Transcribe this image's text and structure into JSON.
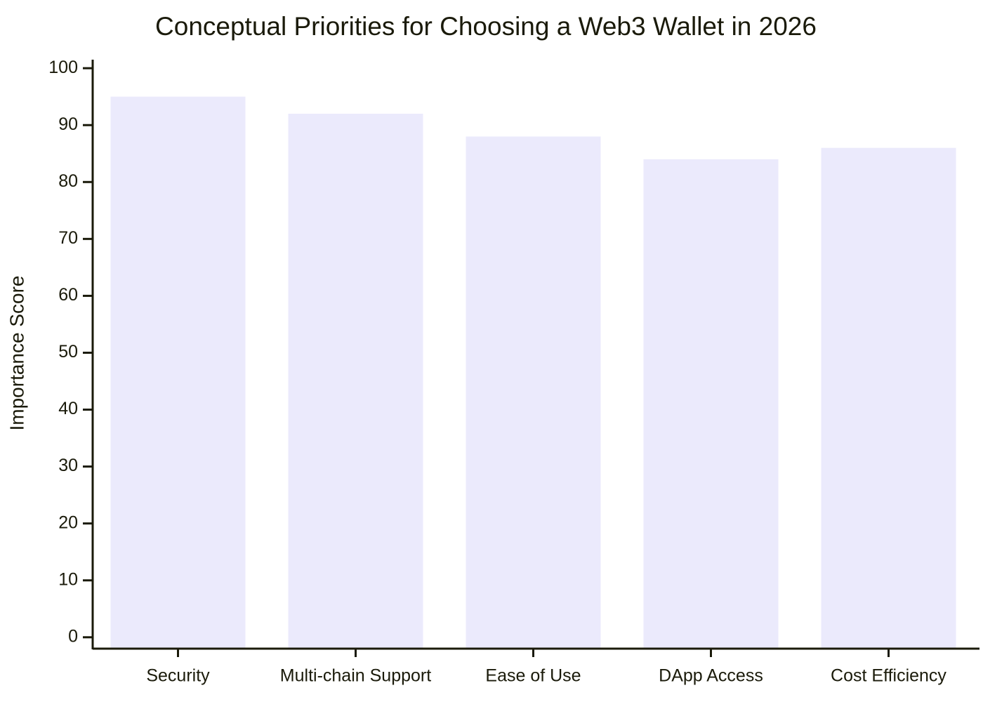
{
  "chart_data": {
    "type": "bar",
    "title": "Conceptual Priorities for Choosing a Web3 Wallet in 2026",
    "y_label": "Importance Score",
    "categories": [
      "Security",
      "Multi-chain Support",
      "Ease of Use",
      "DApp Access",
      "Cost Efficiency"
    ],
    "values": [
      95,
      92,
      88,
      84,
      86
    ],
    "color": "#ebeafc",
    "ylim": [
      -2,
      101.5
    ],
    "yticks": [
      0,
      10,
      20,
      30,
      40,
      50,
      60,
      70,
      80,
      90,
      100
    ],
    "grid": false
  }
}
